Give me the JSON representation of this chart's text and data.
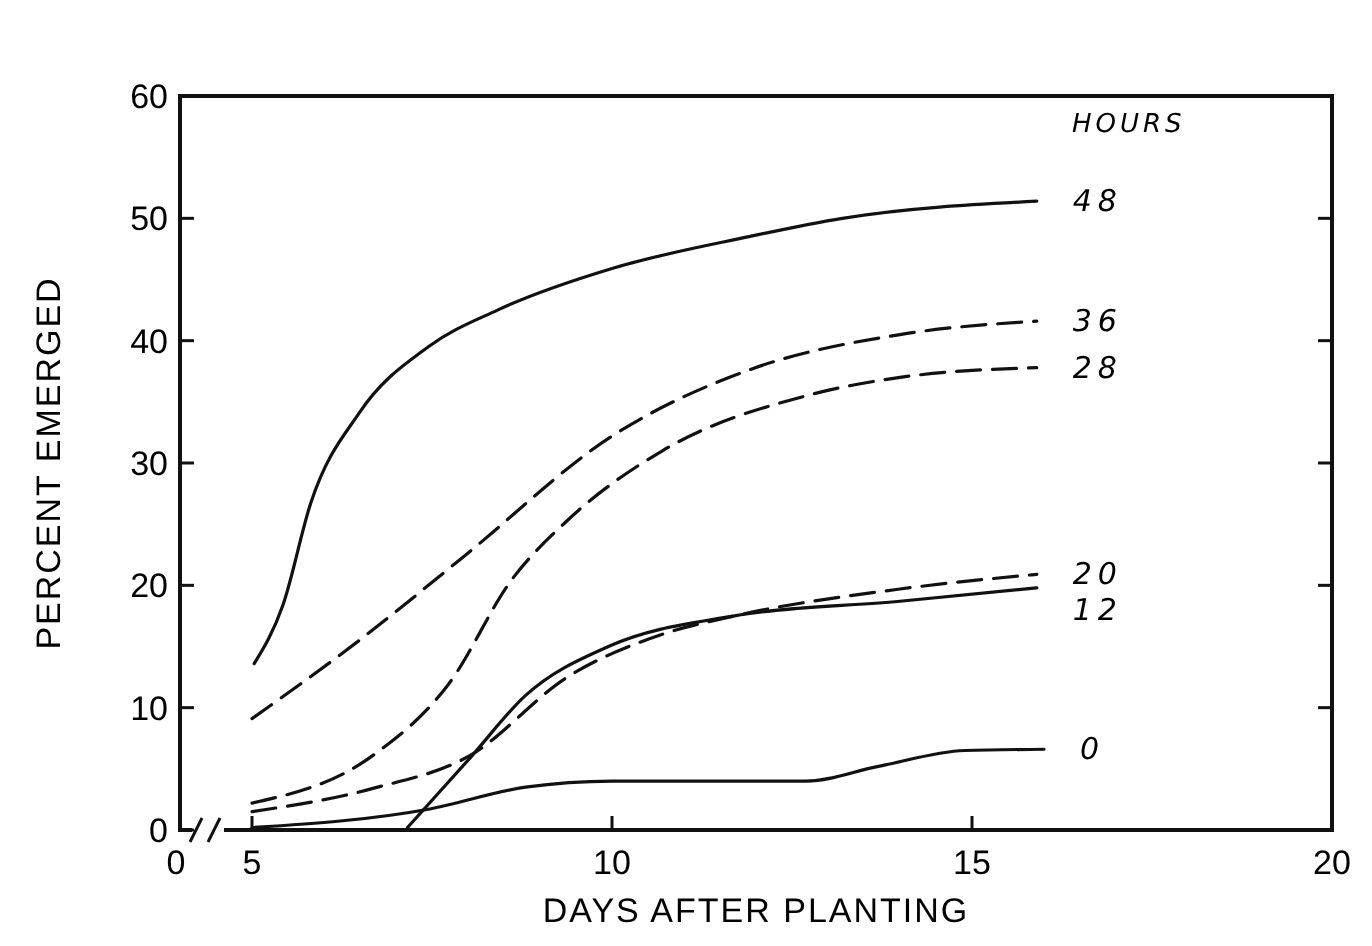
{
  "chart_data": {
    "type": "line",
    "xlabel": "DAYS AFTER PLANTING",
    "ylabel": "PERCENT EMERGED",
    "legend_title": "HOURS",
    "xlim": [
      4,
      20
    ],
    "xticks": [
      5,
      10,
      15,
      20
    ],
    "annotations": [
      "0"
    ],
    "ylim": [
      0,
      60
    ],
    "yticks": [
      0,
      10,
      20,
      30,
      40,
      50,
      60
    ],
    "grid": false,
    "series": [
      {
        "name": "48",
        "color": "#111111",
        "line_style": "solid",
        "x": [
          5.03,
          5.43,
          5.82,
          6.49,
          7.45,
          8.41,
          10,
          11.9,
          13.2,
          15.9
        ],
        "values": [
          13.6,
          18.4,
          26.8,
          34.1,
          39.5,
          42.5,
          45.9,
          48.5,
          50,
          51.4
        ]
      },
      {
        "name": "36",
        "color": "#111111",
        "line_style": "dashed",
        "x": [
          5,
          6.49,
          7.93,
          10,
          11.9,
          14,
          15.9
        ],
        "values": [
          9.1,
          15.5,
          22.3,
          32.2,
          37.6,
          40.5,
          41.6
        ]
      },
      {
        "name": "28",
        "color": "#111111",
        "line_style": "dashed",
        "x": [
          5,
          6.68,
          7.74,
          8.6,
          9.38,
          10.7,
          12.7,
          14,
          15.9
        ],
        "values": [
          2.2,
          6.1,
          12,
          20.4,
          25.3,
          31,
          35.5,
          37,
          37.8
        ]
      },
      {
        "name": "20",
        "color": "#111111",
        "line_style": "dashed",
        "x": [
          5,
          6.68,
          8.03,
          9.38,
          10.7,
          11.7,
          14,
          15.9
        ],
        "values": [
          1.5,
          3.4,
          6.1,
          12.5,
          16,
          17.5,
          19.7,
          20.9
        ]
      },
      {
        "name": "12",
        "color": "#111111",
        "line_style": "solid",
        "x": [
          7.16,
          8.03,
          8.8,
          9.95,
          11.7,
          14,
          15.9
        ],
        "values": [
          0.2,
          5.9,
          11,
          15,
          17.5,
          18.7,
          19.8
        ]
      },
      {
        "name": "0",
        "color": "#111111",
        "line_style": "solid",
        "x": [
          5,
          7.45,
          8.8,
          10,
          11.9,
          12.7,
          13.7,
          14.9,
          16
        ],
        "values": [
          0.2,
          1.7,
          3.5,
          4,
          4,
          4,
          5.2,
          6.5,
          6.6
        ]
      }
    ]
  }
}
